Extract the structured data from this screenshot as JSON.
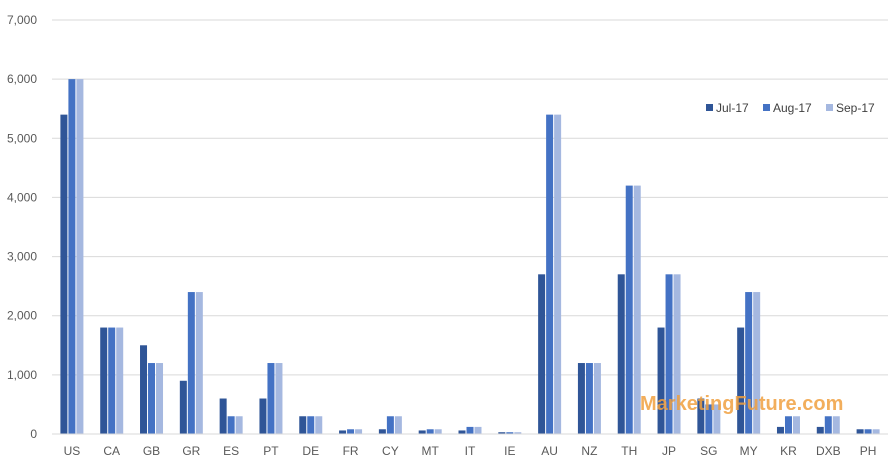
{
  "chart_data": {
    "type": "bar",
    "title": "",
    "xlabel": "",
    "ylabel": "",
    "ylim": [
      0,
      7000
    ],
    "yticks": [
      0,
      1000,
      2000,
      3000,
      4000,
      5000,
      6000,
      7000
    ],
    "ytick_labels": [
      "0",
      "1,000",
      "2,000",
      "3,000",
      "4,000",
      "5,000",
      "6,000",
      "7,000"
    ],
    "grid": true,
    "legend_position": "right",
    "categories": [
      "US",
      "CA",
      "GB",
      "GR",
      "ES",
      "PT",
      "DE",
      "FR",
      "CY",
      "MT",
      "IT",
      "IE",
      "AU",
      "NZ",
      "TH",
      "JP",
      "SG",
      "MY",
      "KR",
      "DXB",
      "PH"
    ],
    "series": [
      {
        "name": "Jul-17",
        "color": "#2f5597",
        "values": [
          5400,
          1800,
          1500,
          900,
          600,
          600,
          300,
          60,
          80,
          60,
          60,
          30,
          2700,
          1200,
          2700,
          1800,
          600,
          1800,
          120,
          120,
          80
        ]
      },
      {
        "name": "Aug-17",
        "color": "#4472c4",
        "values": [
          6000,
          1800,
          1200,
          2400,
          300,
          1200,
          300,
          80,
          300,
          80,
          120,
          30,
          5400,
          1200,
          4200,
          2700,
          500,
          2400,
          300,
          300,
          80
        ]
      },
      {
        "name": "Sep-17",
        "color": "#a5b8e0",
        "values": [
          6000,
          1800,
          1200,
          2400,
          300,
          1200,
          300,
          80,
          300,
          80,
          120,
          30,
          5400,
          1200,
          4200,
          2700,
          500,
          2400,
          300,
          300,
          80
        ]
      }
    ]
  },
  "watermark": {
    "text": "MarketingFuture.com"
  }
}
